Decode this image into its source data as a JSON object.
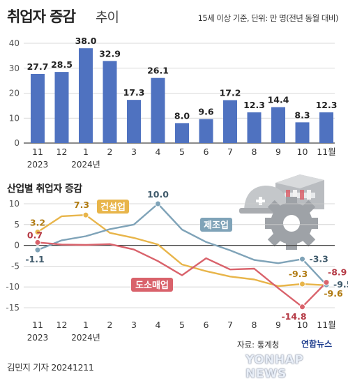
{
  "header": {
    "title_main": "취업자 증감",
    "title_sub": "추이",
    "unit_note": "15세 이상 기준, 단위: 만 명(전년 동월 대비)"
  },
  "colors": {
    "bar": "#4f72c0",
    "construction": "#e8b54a",
    "manufacturing": "#7fa3b8",
    "wholesale_retail": "#d9626b",
    "grid": "#cccccc",
    "zero_line": "#444444"
  },
  "x_labels": [
    "11",
    "12",
    "1",
    "2",
    "3",
    "4",
    "5",
    "6",
    "7",
    "8",
    "9",
    "10",
    "11월"
  ],
  "x_sublabels": [
    "2023",
    "2024년"
  ],
  "chart_data": [
    {
      "type": "bar",
      "categories": [
        "11",
        "12",
        "1",
        "2",
        "3",
        "4",
        "5",
        "6",
        "7",
        "8",
        "9",
        "10",
        "11월"
      ],
      "values": [
        27.7,
        28.5,
        38.0,
        32.9,
        17.3,
        26.1,
        8.0,
        9.6,
        17.2,
        12.3,
        14.4,
        8.3,
        12.3
      ],
      "data_labels": [
        "27.7",
        "28.5",
        "38.0",
        "32.9",
        "17.3",
        "26.1",
        "8.0",
        "9.6",
        "17.2",
        "12.3",
        "14.4",
        "8.3",
        "12.3"
      ],
      "yticks": [
        "0",
        "10",
        "20",
        "30",
        "40"
      ],
      "ylim": [
        0,
        40
      ],
      "grid": true
    },
    {
      "type": "line",
      "title": "산업별 취업자 증감",
      "categories": [
        "11",
        "12",
        "1",
        "2",
        "3",
        "4",
        "5",
        "6",
        "7",
        "8",
        "9",
        "10",
        "11월"
      ],
      "yticks": [
        "10",
        "5",
        "0",
        "-5",
        "-10",
        "-15"
      ],
      "ylim": [
        -15,
        10
      ],
      "grid": true,
      "series": [
        {
          "name": "건설업",
          "key": "construction",
          "values": [
            3.2,
            7.0,
            7.3,
            3.0,
            1.8,
            0.2,
            -4.6,
            -6.2,
            -7.5,
            -8.2,
            -9.8,
            -9.3,
            -9.6
          ]
        },
        {
          "name": "제조업",
          "key": "manufacturing",
          "values": [
            -1.1,
            1.2,
            2.2,
            3.9,
            5.0,
            10.0,
            3.8,
            0.8,
            -1.2,
            -3.5,
            -4.3,
            -3.3,
            -9.5
          ]
        },
        {
          "name": "도소매업",
          "key": "wholesale_retail",
          "values": [
            0.7,
            0.2,
            0.1,
            0.3,
            -1.0,
            -3.8,
            -7.2,
            -3.1,
            -5.8,
            -5.6,
            -10.3,
            -14.8,
            -8.9
          ]
        }
      ],
      "point_labels": [
        {
          "series": "construction",
          "index": 0,
          "text": "3.2"
        },
        {
          "series": "construction",
          "index": 2,
          "text": "7.3"
        },
        {
          "series": "construction",
          "index": 11,
          "text": "-9.3"
        },
        {
          "series": "construction",
          "index": 12,
          "text": "-9.6"
        },
        {
          "series": "manufacturing",
          "index": 0,
          "text": "-1.1"
        },
        {
          "series": "manufacturing",
          "index": 5,
          "text": "10.0"
        },
        {
          "series": "manufacturing",
          "index": 11,
          "text": "-3.3"
        },
        {
          "series": "manufacturing",
          "index": 12,
          "text": "-9.5"
        },
        {
          "series": "wholesale_retail",
          "index": 0,
          "text": "0.7"
        },
        {
          "series": "wholesale_retail",
          "index": 11,
          "text": "-14.8"
        },
        {
          "series": "wholesale_retail",
          "index": 12,
          "text": "-8.9"
        }
      ]
    }
  ],
  "footer": {
    "source": "자료: 통계청",
    "brand_ko": "연합뉴스",
    "brand_en": "YONHAP NEWS",
    "credit": "김민지 기자  20241211"
  }
}
